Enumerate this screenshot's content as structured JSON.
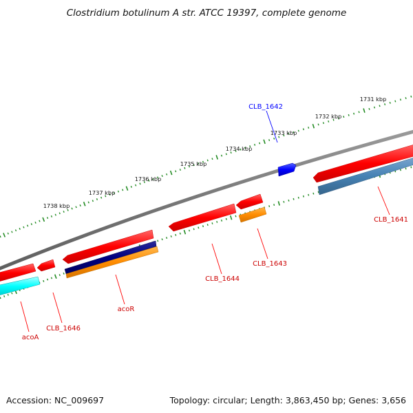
{
  "title": "Clostridium botulinum A str. ATCC 19397, complete genome",
  "footer": {
    "accession": "Accession: NC_009697",
    "summary": "Topology: circular; Length: 3,863,450 bp; Genes: 3,656"
  },
  "ruler": {
    "tick_labels": [
      "1731 kbp",
      "1732 kbp",
      "1733 kbp",
      "1734 kbp",
      "1735 kbp",
      "1736 kbp",
      "1737 kbp",
      "1738 kbp"
    ]
  },
  "gene_labels": {
    "clb_1642": "CLB_1642",
    "clb_1641": "CLB_1641",
    "clb_1643": "CLB_1643",
    "clb_1644": "CLB_1644",
    "acor": "acoR",
    "clb_1646": "CLB_1646",
    "acoa": "acoA"
  },
  "colors": {
    "backbone": "#777777",
    "gene": "#ff0000",
    "forward_gene": "#0000ff",
    "ruler_ticks": "#228b22",
    "cyan_feature": "#00ffff",
    "navy_feature": "#000080",
    "orange_feature": "#ff8c00",
    "steel_feature": "#4682b4"
  }
}
